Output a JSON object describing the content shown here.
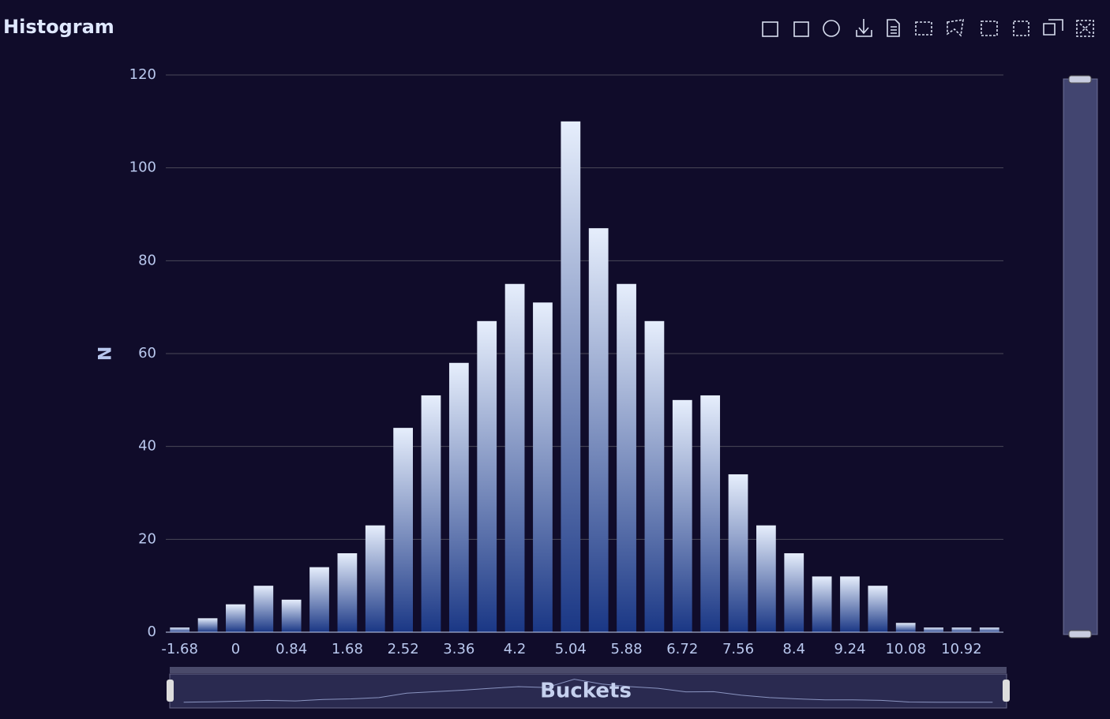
{
  "chart_data": {
    "type": "bar",
    "title": "Histogram",
    "y_label": "N",
    "x_label": "Buckets",
    "categories": [
      "-1.68",
      null,
      "0",
      null,
      "0.84",
      null,
      "1.68",
      null,
      "2.52",
      null,
      "3.36",
      null,
      "4.2",
      null,
      "5.04",
      null,
      "5.88",
      null,
      "6.72",
      null,
      "7.56",
      null,
      "8.4",
      null,
      "9.24",
      null,
      "10.08",
      null,
      "10.92",
      null
    ],
    "values": [
      1,
      3,
      6,
      10,
      7,
      14,
      17,
      23,
      44,
      51,
      58,
      67,
      75,
      71,
      110,
      87,
      75,
      67,
      50,
      51,
      34,
      23,
      17,
      12,
      12,
      10,
      2,
      1,
      1,
      1
    ],
    "gradient": [
      "#e6eefc",
      "#1a3785"
    ],
    "ylim": [
      0,
      120
    ],
    "yticks": [
      0,
      20,
      40,
      60,
      80,
      100,
      120
    ],
    "grid": true
  }
}
